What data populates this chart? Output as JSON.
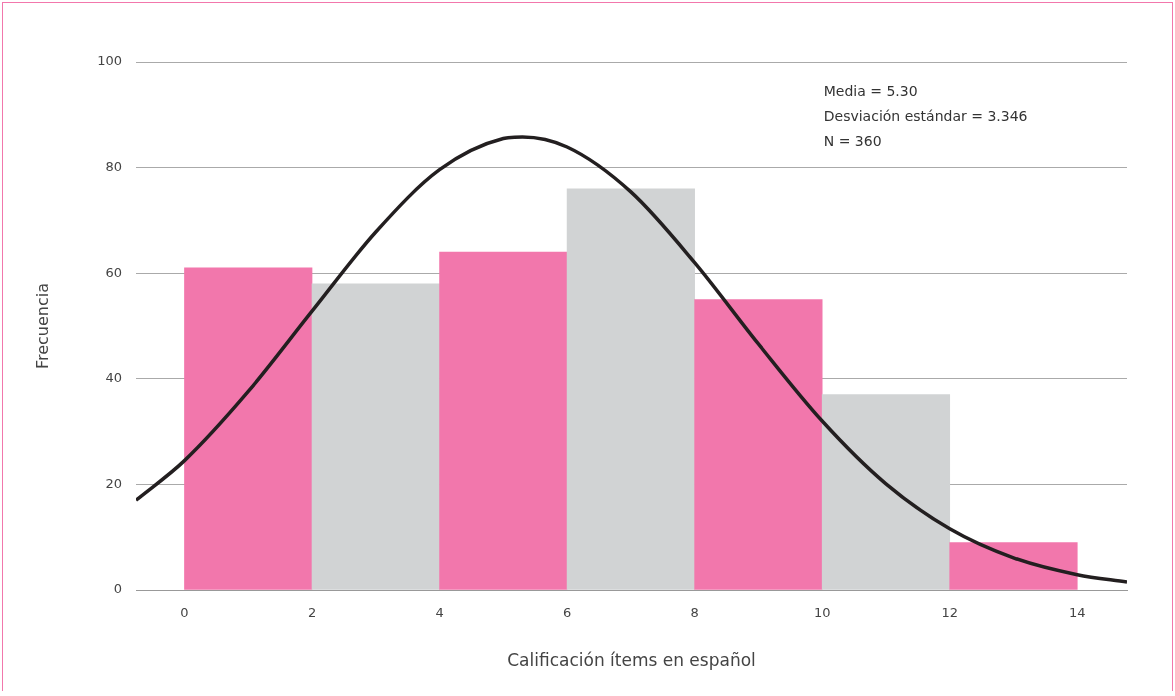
{
  "chart_data": {
    "type": "histogram",
    "xlabel": "Calificación ítems en español",
    "ylabel": "Frecuencia",
    "bins": [
      0,
      2,
      4,
      6,
      8,
      10,
      12,
      14
    ],
    "values": [
      61,
      58,
      64,
      76,
      55,
      37,
      9
    ],
    "colors": [
      "#f277ac",
      "#d1d3d4",
      "#f277ac",
      "#d1d3d4",
      "#f277ac",
      "#d1d3d4",
      "#f277ac"
    ],
    "series": [
      {
        "type": "line",
        "color": "#231f20",
        "x": [
          -0.76,
          0,
          1,
          2,
          3,
          4,
          5,
          5.3,
          6,
          7,
          8,
          9,
          10,
          11,
          12,
          13,
          14,
          14.78
        ],
        "values": [
          17,
          24.5,
          37.6,
          52.8,
          67.8,
          79.6,
          85.5,
          85.8,
          83.9,
          75.4,
          62,
          46.6,
          32,
          20.1,
          11.6,
          6.1,
          2.9,
          1.5
        ]
      }
    ],
    "xlim": [
      -0.76,
      14.78
    ],
    "xticks": [
      0,
      2,
      4,
      6,
      8,
      10,
      12,
      14
    ],
    "ylim": [
      0,
      100
    ],
    "yticks": [
      0,
      20,
      40,
      60,
      80,
      100
    ],
    "grid": "y",
    "legend": false,
    "marker": "none",
    "line_style": "solid",
    "annotations": [
      "Media = 5.30",
      "Desviación estándar = 3.346",
      "N = 360"
    ]
  }
}
